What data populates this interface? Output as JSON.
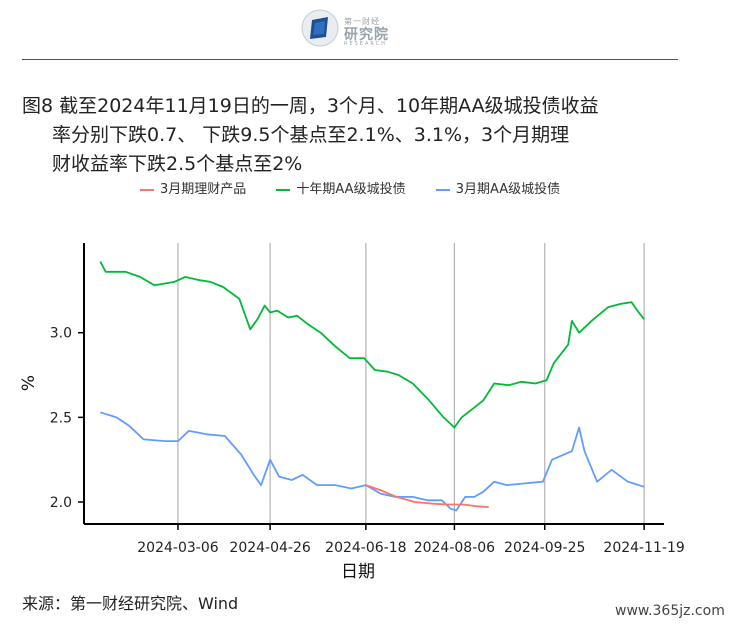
{
  "header": {
    "logo_small": "第一财经",
    "logo_big": "研究院",
    "logo_en": "RESEARCH"
  },
  "title": {
    "line1": "图8 截至2024年11月19日的一周，3个月、10年期AA级城投债收益",
    "line2": "率分别下跌0.7、 下跌9.5个基点至2.1%、3.1%，3个月期理",
    "line3": "财收益率下跌2.5个基点至2%"
  },
  "footer": {
    "source": "来源：第一财经研究院、Wind",
    "watermark": "www.365jz.com"
  },
  "chart_data": {
    "type": "line",
    "xlabel": "日期",
    "ylabel": "%",
    "x_ticks": [
      "2024-03-06",
      "2024-04-26",
      "2024-06-18",
      "2024-08-06",
      "2024-09-25",
      "2024-11-19"
    ],
    "y_ticks": [
      2.0,
      2.5,
      3.0
    ],
    "x_range": [
      "2024-01-14",
      "2024-11-30"
    ],
    "y_range": [
      1.87,
      3.53
    ],
    "grid": "vertical",
    "legend_position": "top",
    "series": [
      {
        "name": "3月期理财产品",
        "color": "#F8766D",
        "x": [
          "2024-06-18",
          "2024-06-26",
          "2024-07-05",
          "2024-07-15",
          "2024-07-25",
          "2024-08-02",
          "2024-08-11",
          "2024-08-18",
          "2024-08-25"
        ],
        "y": [
          2.1,
          2.07,
          2.03,
          2.0,
          1.99,
          1.985,
          1.985,
          1.975,
          1.97
        ]
      },
      {
        "name": "十年期AA级城投债",
        "color": "#00BA38",
        "x": [
          "2024-01-23",
          "2024-01-26",
          "2024-02-06",
          "2024-02-14",
          "2024-02-22",
          "2024-03-04",
          "2024-03-10",
          "2024-03-18",
          "2024-03-24",
          "2024-03-31",
          "2024-04-09",
          "2024-04-15",
          "2024-04-19",
          "2024-04-23",
          "2024-04-26",
          "2024-04-30",
          "2024-05-06",
          "2024-05-11",
          "2024-05-17",
          "2024-05-24",
          "2024-06-01",
          "2024-06-09",
          "2024-06-17",
          "2024-06-23",
          "2024-06-30",
          "2024-07-06",
          "2024-07-14",
          "2024-07-23",
          "2024-07-31",
          "2024-08-06",
          "2024-08-10",
          "2024-08-16",
          "2024-08-22",
          "2024-08-28",
          "2024-09-05",
          "2024-09-12",
          "2024-09-20",
          "2024-09-26",
          "2024-09-30",
          "2024-10-08",
          "2024-10-10",
          "2024-10-14",
          "2024-10-22",
          "2024-10-30",
          "2024-11-06",
          "2024-11-12",
          "2024-11-16",
          "2024-11-19"
        ],
        "y": [
          3.42,
          3.36,
          3.36,
          3.33,
          3.28,
          3.3,
          3.33,
          3.31,
          3.3,
          3.27,
          3.2,
          3.02,
          3.08,
          3.16,
          3.12,
          3.13,
          3.09,
          3.1,
          3.05,
          3.0,
          2.92,
          2.85,
          2.85,
          2.78,
          2.77,
          2.75,
          2.7,
          2.6,
          2.5,
          2.44,
          2.5,
          2.55,
          2.6,
          2.7,
          2.69,
          2.71,
          2.7,
          2.72,
          2.82,
          2.93,
          3.07,
          3.0,
          3.08,
          3.15,
          3.17,
          3.18,
          3.12,
          3.08
        ]
      },
      {
        "name": "3月期AA级城投债",
        "color": "#619CFF",
        "x": [
          "2024-01-23",
          "2024-02-01",
          "2024-02-08",
          "2024-02-16",
          "2024-02-28",
          "2024-03-06",
          "2024-03-12",
          "2024-03-22",
          "2024-04-01",
          "2024-04-10",
          "2024-04-17",
          "2024-04-21",
          "2024-04-26",
          "2024-05-01",
          "2024-05-08",
          "2024-05-14",
          "2024-05-22",
          "2024-06-01",
          "2024-06-10",
          "2024-06-18",
          "2024-06-26",
          "2024-07-04",
          "2024-07-14",
          "2024-07-22",
          "2024-07-30",
          "2024-08-04",
          "2024-08-07",
          "2024-08-12",
          "2024-08-17",
          "2024-08-22",
          "2024-08-28",
          "2024-09-04",
          "2024-09-14",
          "2024-09-24",
          "2024-09-29",
          "2024-10-10",
          "2024-10-14",
          "2024-10-17",
          "2024-10-24",
          "2024-11-01",
          "2024-11-10",
          "2024-11-19"
        ],
        "y": [
          2.53,
          2.5,
          2.45,
          2.37,
          2.36,
          2.36,
          2.42,
          2.4,
          2.39,
          2.28,
          2.16,
          2.1,
          2.25,
          2.15,
          2.13,
          2.16,
          2.1,
          2.1,
          2.08,
          2.1,
          2.05,
          2.03,
          2.03,
          2.01,
          2.01,
          1.96,
          1.95,
          2.03,
          2.03,
          2.06,
          2.12,
          2.1,
          2.11,
          2.12,
          2.25,
          2.3,
          2.44,
          2.3,
          2.12,
          2.19,
          2.12,
          2.09
        ]
      }
    ]
  }
}
